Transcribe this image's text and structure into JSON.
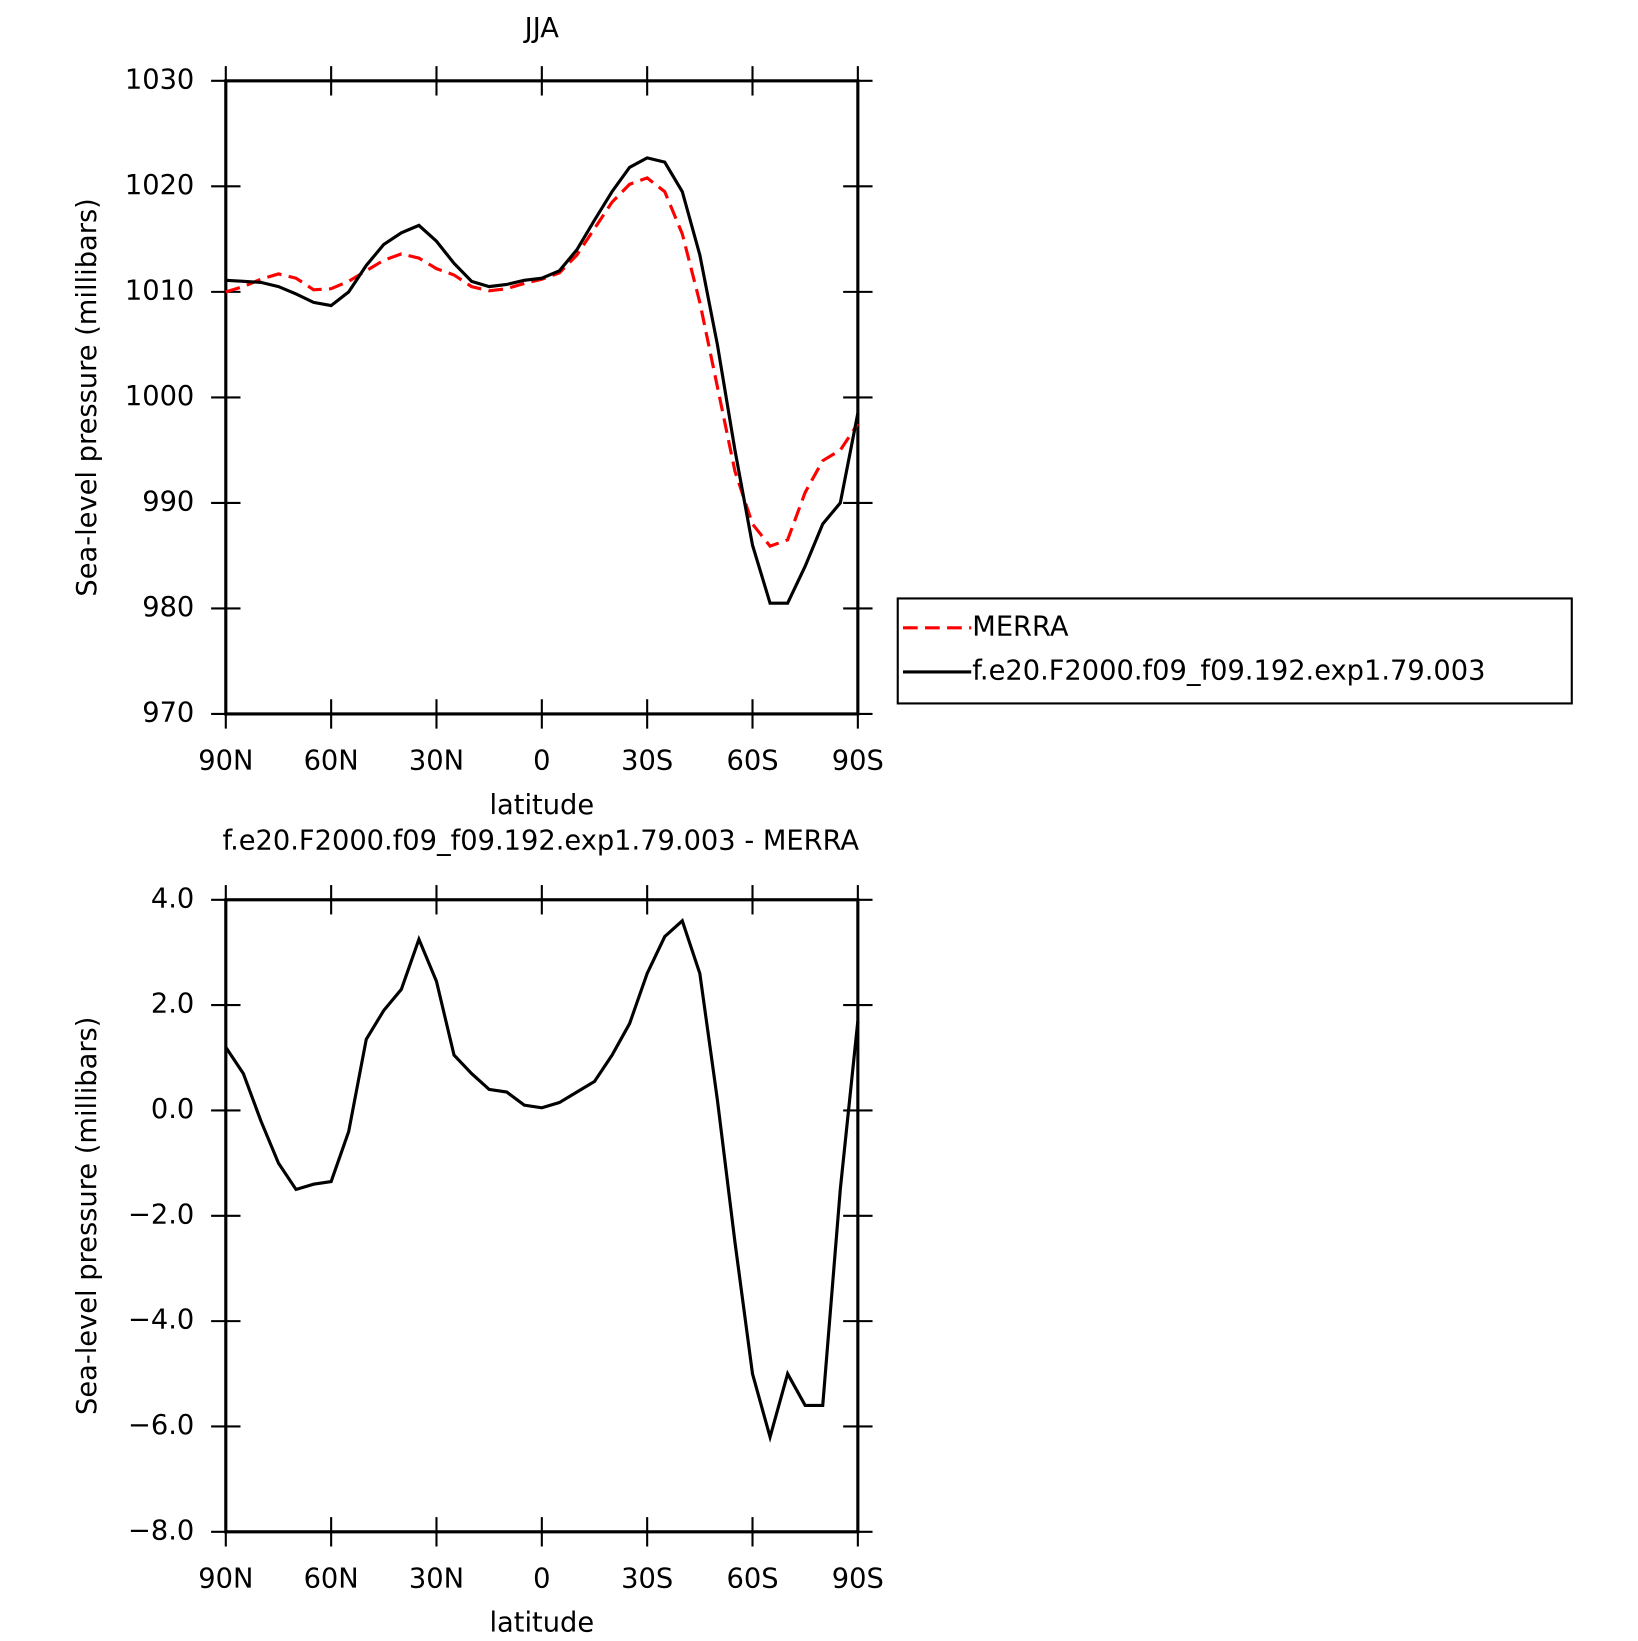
{
  "chart_data": [
    {
      "type": "line",
      "title": "JJA",
      "xlabel": "latitude",
      "ylabel": "Sea-level pressure (millibars)",
      "x": [
        90,
        85,
        80,
        75,
        70,
        65,
        60,
        55,
        50,
        45,
        40,
        35,
        30,
        25,
        20,
        15,
        10,
        5,
        0,
        -5,
        -10,
        -15,
        -20,
        -25,
        -30,
        -35,
        -40,
        -45,
        -50,
        -55,
        -60,
        -65,
        -70,
        -75,
        -80,
        -85,
        -90
      ],
      "series": [
        {
          "name": "MERRA",
          "color": "#ff0000",
          "line_style": "dashed",
          "values": [
            1010.0,
            1010.5,
            1011.2,
            1011.7,
            1011.3,
            1010.2,
            1010.3,
            1011.0,
            1012.0,
            1013.0,
            1013.6,
            1013.2,
            1012.2,
            1011.6,
            1010.5,
            1010.1,
            1010.3,
            1010.8,
            1011.2,
            1011.8,
            1013.5,
            1016,
            1018.5,
            1020.2,
            1020.8,
            1019.5,
            1015.5,
            1009,
            1001,
            993,
            988,
            985.9,
            986.5,
            991,
            994,
            995,
            997.5
          ]
        },
        {
          "name": "f.e20.F2000.f09_f09.192.exp1.79.003",
          "color": "#000000",
          "line_style": "solid",
          "values": [
            1011.1,
            1011.0,
            1010.9,
            1010.5,
            1009.8,
            1009.0,
            1008.7,
            1010.0,
            1012.5,
            1014.5,
            1015.6,
            1016.3,
            1014.8,
            1012.7,
            1011.0,
            1010.5,
            1010.7,
            1011.1,
            1011.3,
            1012,
            1014,
            1016.8,
            1019.5,
            1021.8,
            1022.7,
            1022.3,
            1019.5,
            1013.5,
            1005,
            995,
            986,
            980.5,
            980.5,
            984,
            988,
            990,
            998.5
          ]
        }
      ],
      "xlim": [
        90,
        -90
      ],
      "xticks": [
        {
          "value": 90,
          "label": "90N"
        },
        {
          "value": 60,
          "label": "60N"
        },
        {
          "value": 30,
          "label": "30N"
        },
        0,
        {
          "value": -30,
          "label": "30S"
        },
        {
          "value": -60,
          "label": "60S"
        },
        {
          "value": -90,
          "label": "90S"
        }
      ],
      "ylim": [
        970,
        1030
      ],
      "yticks": [
        970,
        980,
        990,
        1000,
        1010,
        1020,
        1030
      ]
    },
    {
      "type": "line",
      "title": "f.e20.F2000.f09_f09.192.exp1.79.003 - MERRA",
      "xlabel": "latitude",
      "ylabel": "Sea-level pressure (millibars)",
      "x": [
        90,
        85,
        80,
        75,
        70,
        65,
        60,
        55,
        50,
        45,
        40,
        35,
        30,
        25,
        20,
        15,
        10,
        5,
        0,
        -5,
        -10,
        -15,
        -20,
        -25,
        -30,
        -35,
        -40,
        -45,
        -50,
        -55,
        -60,
        -65,
        -70,
        -75,
        -80,
        -85,
        -90
      ],
      "values": [
        1.2,
        0.7,
        -0.2,
        -1.0,
        -1.5,
        -1.4,
        -1.35,
        -0.4,
        1.35,
        1.9,
        2.3,
        3.25,
        2.45,
        1.05,
        0.7,
        0.4,
        0.35,
        0.1,
        0.05,
        0.15,
        0.35,
        0.55,
        1.05,
        1.65,
        2.6,
        3.3,
        3.6,
        2.6,
        0.2,
        -2.5,
        -5.0,
        -6.2,
        -5.0,
        -5.6,
        -5.6,
        -1.5,
        1.7
      ],
      "color": "#000000",
      "xlim": [
        90,
        -90
      ],
      "xticks": [
        {
          "value": 90,
          "label": "90N"
        },
        {
          "value": 60,
          "label": "60N"
        },
        {
          "value": 30,
          "label": "30N"
        },
        0,
        {
          "value": -30,
          "label": "30S"
        },
        {
          "value": -60,
          "label": "60S"
        },
        {
          "value": -90,
          "label": "90S"
        }
      ],
      "ylim": [
        -8,
        4
      ],
      "yticks": [
        {
          "value": -8,
          "label": "−8.0"
        },
        {
          "value": -6,
          "label": "−6.0"
        },
        {
          "value": -4,
          "label": "−4.0"
        },
        {
          "value": -2,
          "label": "−2.0"
        },
        {
          "value": 0,
          "label": "0.0"
        },
        {
          "value": 2,
          "label": "2.0"
        },
        {
          "value": 4,
          "label": "4.0"
        }
      ]
    }
  ]
}
